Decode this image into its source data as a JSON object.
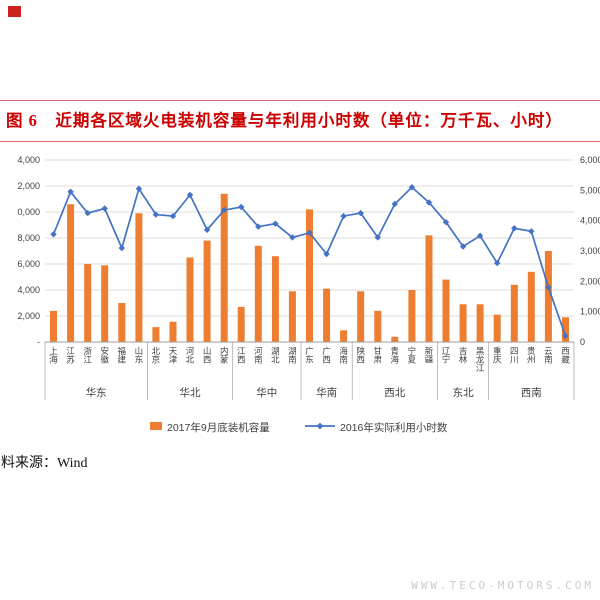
{
  "page": {
    "title": "图 6　近期各区域火电装机容量与年利用小时数（单位：万千瓦、小时）",
    "source_note": "料来源：Wind",
    "watermark": "WWW.TECO-MOTORS.COM"
  },
  "colors": {
    "title_red": "#cc0000",
    "rule_red": "#d96b6b",
    "logo_red": "#cc2222",
    "bar_orange": "#ED7D31",
    "line_blue": "#4472C4",
    "grid": "#dcdcdc",
    "axis": "#9e9e9e",
    "tick_text": "#3f3f3f",
    "watermark_gray": "#cbcbcb"
  },
  "chart_data": {
    "type": "bar",
    "title": "图 6　近期各区域火电装机容量与年利用小时数（单位：万千瓦、小时）",
    "categories": [
      "上海",
      "江苏",
      "浙江",
      "安徽",
      "福建",
      "山东",
      "北京",
      "天津",
      "河北",
      "山西",
      "内蒙",
      "江西",
      "河南",
      "湖北",
      "湖南",
      "广东",
      "广西",
      "海南",
      "陕西",
      "甘肃",
      "青海",
      "宁夏",
      "新疆",
      "辽宁",
      "吉林",
      "黑龙江",
      "重庆",
      "四川",
      "贵州",
      "云南",
      "西藏"
    ],
    "region_groups": [
      {
        "label": "华东",
        "span": 6
      },
      {
        "label": "华北",
        "span": 5
      },
      {
        "label": "华中",
        "span": 4
      },
      {
        "label": "华南",
        "span": 3
      },
      {
        "label": "西北",
        "span": 5
      },
      {
        "label": "东北",
        "span": 3
      },
      {
        "label": "西南",
        "span": 5
      }
    ],
    "series": [
      {
        "name": "2017年9月底装机容量",
        "kind": "bar",
        "axis": "left",
        "unit": "万千瓦",
        "values": [
          2400,
          10600,
          6000,
          5900,
          3000,
          9900,
          1150,
          1550,
          6500,
          7800,
          11400,
          2700,
          7400,
          6600,
          3900,
          10200,
          4100,
          900,
          3900,
          2400,
          400,
          4000,
          8200,
          4800,
          2900,
          2900,
          2100,
          4400,
          5400,
          7000,
          1900
        ]
      },
      {
        "name": "2016年实际利用小时数",
        "kind": "line",
        "axis": "right",
        "unit": "小时",
        "values": [
          3550,
          4950,
          4250,
          4400,
          3100,
          5050,
          4200,
          4150,
          4850,
          3700,
          4350,
          4450,
          3800,
          3900,
          3450,
          3600,
          2900,
          4150,
          4250,
          3450,
          4550,
          5100,
          4600,
          3950,
          3150,
          3500,
          2600,
          3750,
          3650,
          1800,
          200
        ]
      }
    ],
    "left_axis": {
      "min": 0,
      "max": 14000,
      "step": 2000,
      "tick_labels_shown": [
        "4,000",
        "2,000",
        "0,000",
        "8,000",
        "6,000",
        "4,000",
        "2,000",
        "-"
      ]
    },
    "right_axis": {
      "min": 0,
      "max": 6000,
      "step": 1000,
      "tick_labels_shown": [
        "6,000",
        "5,000",
        "4,000",
        "3,000",
        "2,000",
        "1,000",
        "0"
      ]
    },
    "grid": true,
    "legend_position": "bottom"
  }
}
